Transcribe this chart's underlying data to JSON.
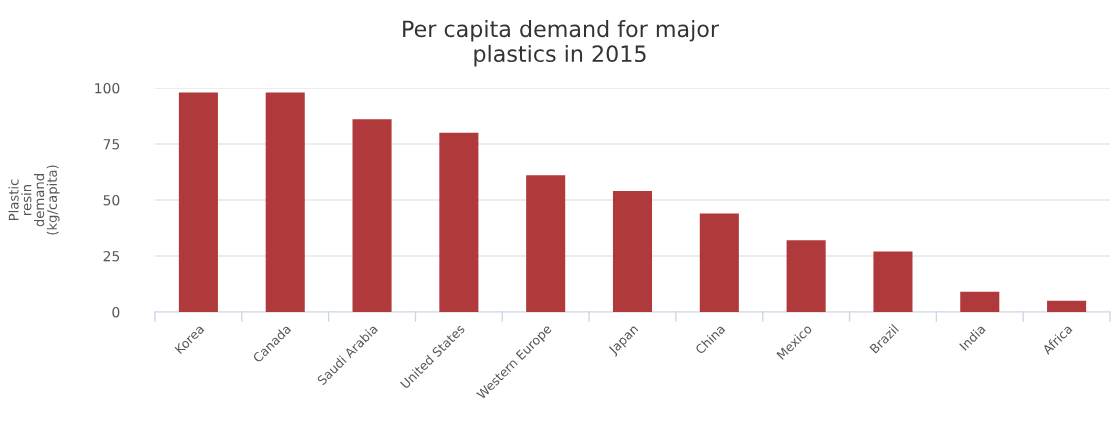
{
  "chart_data": {
    "type": "bar",
    "title": "Per capita demand for major\nplastics in 2015",
    "ylabel": "Plastic\nresin\ndemand\n(kg/capita)",
    "categories": [
      "Korea",
      "Canada",
      "Saudi Arabia",
      "United States",
      "Western Europe",
      "Japan",
      "China",
      "Mexico",
      "Brazil",
      "India",
      "Africa"
    ],
    "values": [
      98,
      98,
      86,
      80,
      61,
      54,
      44,
      32,
      27,
      9,
      5
    ],
    "color": "#b0393b",
    "ylim": [
      0,
      100
    ],
    "yticks": [
      0,
      25,
      50,
      75,
      100
    ],
    "grid": "y"
  }
}
